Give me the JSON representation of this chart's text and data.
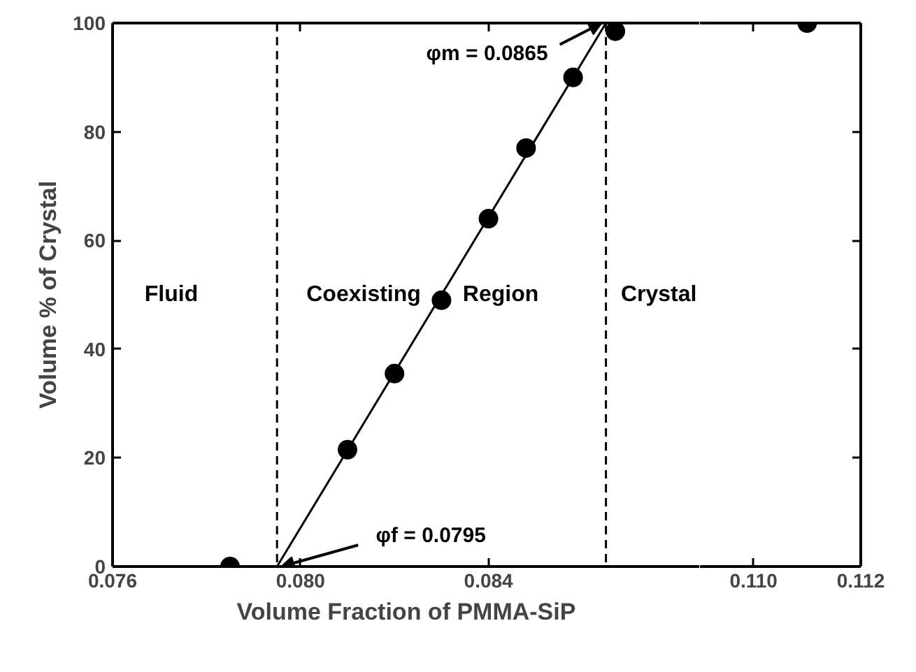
{
  "chart_data": [
    {
      "type": "scatter",
      "xlabel": "Volume Fraction of PMMA-SiP",
      "ylabel": "Volume % of Crystal",
      "xlim": [
        0.076,
        0.0885
      ],
      "xticks": [
        {
          "value": 0.076,
          "label": "0.076"
        },
        {
          "value": 0.08,
          "label": "0.080"
        },
        {
          "value": 0.084,
          "label": "0.084"
        }
      ],
      "ylim": [
        0,
        100
      ],
      "yticks": [
        0,
        20,
        40,
        60,
        80,
        100
      ],
      "grid": false,
      "series": [
        {
          "color": "#000000",
          "marker": "circle",
          "x": [
            0.0785,
            0.081,
            0.082,
            0.083,
            0.084,
            0.0848,
            0.0858,
            0.0867
          ],
          "values": [
            0,
            21.5,
            35.5,
            49,
            64,
            77,
            90,
            98.5
          ]
        },
        {
          "type": "line",
          "color": "#000000",
          "x": [
            0.0795,
            0.0865
          ],
          "values": [
            0,
            100
          ],
          "line_style": "solid"
        }
      ],
      "ref_lines": [
        {
          "axis": "x",
          "value": 0.0795,
          "line_style": "dashed"
        },
        {
          "axis": "x",
          "value": 0.0865,
          "line_style": "dashed"
        }
      ],
      "annotations": [
        "Fluid",
        "Coexisting  Region",
        "Crystal",
        {
          "text": "φm = 0.0865",
          "x": 0.0865,
          "y": 100
        },
        {
          "text": "φf = 0.0795",
          "x": 0.0795,
          "y": 0
        }
      ]
    },
    {
      "type": "scatter",
      "xlim": [
        0.109,
        0.112
      ],
      "xticks": [
        {
          "value": 0.11,
          "label": "0.110"
        },
        {
          "value": 0.112,
          "label": "0.112"
        }
      ],
      "ylim": [
        0,
        100
      ],
      "yticks": [
        0,
        20,
        40,
        60,
        80,
        100
      ],
      "tick_labels": "x",
      "grid": false,
      "marker": "circle",
      "series": [
        {
          "color": "#000000",
          "x": [
            0.111
          ],
          "values": [
            100
          ]
        }
      ]
    }
  ]
}
